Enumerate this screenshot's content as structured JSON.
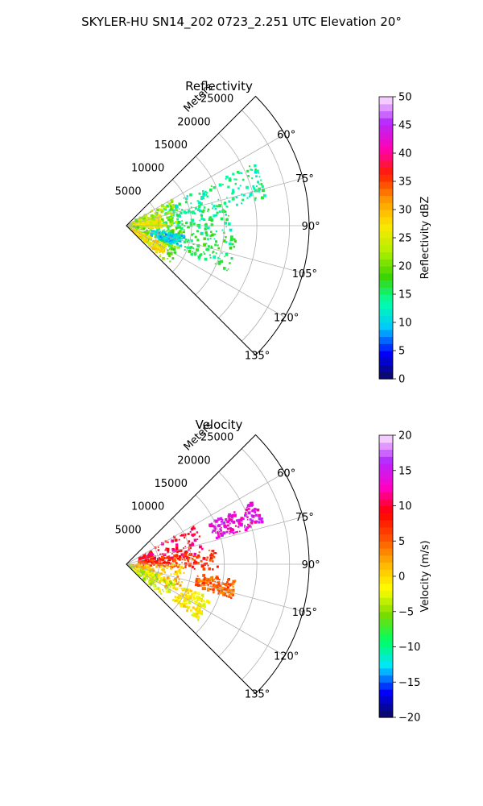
{
  "figure": {
    "suptitle": "SKYLER-HU  SN14_202  0723_2.251 UTC Elevation 20°"
  },
  "chart_data": [
    {
      "type": "heatmap",
      "title": "Reflectivity",
      "projection": "polar-sector",
      "radial_label": "Meters",
      "radial_ticks": [
        5000,
        10000,
        15000,
        20000,
        25000
      ],
      "radial_tick_labels": [
        "5000",
        "10000",
        "15000",
        "20000",
        "25000"
      ],
      "radial_range": [
        0,
        28000
      ],
      "azimuth_ticks": [
        60,
        75,
        90,
        105,
        120,
        135
      ],
      "azimuth_tick_labels": [
        "60°",
        "75°",
        "90°",
        "105°",
        "120°",
        "135°"
      ],
      "azimuth_range": [
        45,
        135
      ],
      "grid": true,
      "colorbar": {
        "label": "Reflectivity dBZ",
        "min": 0,
        "max": 50,
        "ticks": [
          0,
          5,
          10,
          15,
          20,
          25,
          30,
          35,
          40,
          45,
          50
        ],
        "tick_labels": [
          "0",
          "5",
          "10",
          "15",
          "20",
          "25",
          "30",
          "35",
          "40",
          "45",
          "50"
        ],
        "colormap": [
          "#0a0a5a",
          "#0000ff",
          "#00c8ff",
          "#00ffaa",
          "#3cd400",
          "#b4f000",
          "#ffe600",
          "#ff9600",
          "#ff1e00",
          "#ff00b4",
          "#b428ff",
          "#ffe6ff"
        ]
      },
      "echo_regions": [
        {
          "az_range": [
            64,
            80
          ],
          "r_range": [
            6000,
            22000
          ],
          "value": 14
        },
        {
          "az_range": [
            78,
            96
          ],
          "r_range": [
            2000,
            16000
          ],
          "value": 15
        },
        {
          "az_range": [
            96,
            116
          ],
          "r_range": [
            3000,
            17000
          ],
          "value": 16
        },
        {
          "az_range": [
            60,
            92
          ],
          "r_range": [
            500,
            8000
          ],
          "value": 22
        },
        {
          "az_range": [
            72,
            94
          ],
          "r_range": [
            1000,
            5500
          ],
          "value": 26
        },
        {
          "az_range": [
            94,
            132
          ],
          "r_range": [
            500,
            9000
          ],
          "value": 20
        },
        {
          "az_range": [
            115,
            132
          ],
          "r_range": [
            1000,
            7000
          ],
          "value": 27
        },
        {
          "az_range": [
            100,
            112
          ],
          "r_range": [
            4000,
            9000
          ],
          "value": 10
        }
      ]
    },
    {
      "type": "heatmap",
      "title": "Velocity",
      "projection": "polar-sector",
      "radial_label": "Meters",
      "radial_ticks": [
        5000,
        10000,
        15000,
        20000,
        25000
      ],
      "radial_tick_labels": [
        "5000",
        "10000",
        "15000",
        "20000",
        "25000"
      ],
      "radial_range": [
        0,
        28000
      ],
      "azimuth_ticks": [
        60,
        75,
        90,
        105,
        120,
        135
      ],
      "azimuth_tick_labels": [
        "60°",
        "75°",
        "90°",
        "105°",
        "120°",
        "135°"
      ],
      "azimuth_range": [
        45,
        135
      ],
      "grid": true,
      "colorbar": {
        "label": "Velocity (m/s)",
        "min": -20,
        "max": 20,
        "ticks": [
          -20,
          -15,
          -10,
          -5,
          0,
          5,
          10,
          15,
          20
        ],
        "tick_labels": [
          "−20",
          "−15",
          "−10",
          "−5",
          "0",
          "5",
          "10",
          "15",
          "20"
        ],
        "colormap": [
          "#0a0a5a",
          "#0000ff",
          "#00e6ff",
          "#00ff64",
          "#78dc00",
          "#ffff00",
          "#ffb400",
          "#ff5000",
          "#ff0000",
          "#ff00c8",
          "#b428ff",
          "#ffe6ff"
        ]
      },
      "echo_regions": [
        {
          "az_range": [
            60,
            86
          ],
          "r_range": [
            2000,
            12000
          ],
          "value": 10
        },
        {
          "az_range": [
            64,
            74
          ],
          "r_range": [
            14000,
            22000
          ],
          "value": 14
        },
        {
          "az_range": [
            80,
            94
          ],
          "r_range": [
            2000,
            14000
          ],
          "value": 7
        },
        {
          "az_range": [
            90,
            120
          ],
          "r_range": [
            1000,
            9000
          ],
          "value": 1
        },
        {
          "az_range": [
            98,
            108
          ],
          "r_range": [
            11000,
            17000
          ],
          "value": 5
        },
        {
          "az_range": [
            108,
            132
          ],
          "r_range": [
            500,
            8000
          ],
          "value": -3
        },
        {
          "az_range": [
            112,
            128
          ],
          "r_range": [
            9000,
            14000
          ],
          "value": -1
        }
      ]
    }
  ]
}
